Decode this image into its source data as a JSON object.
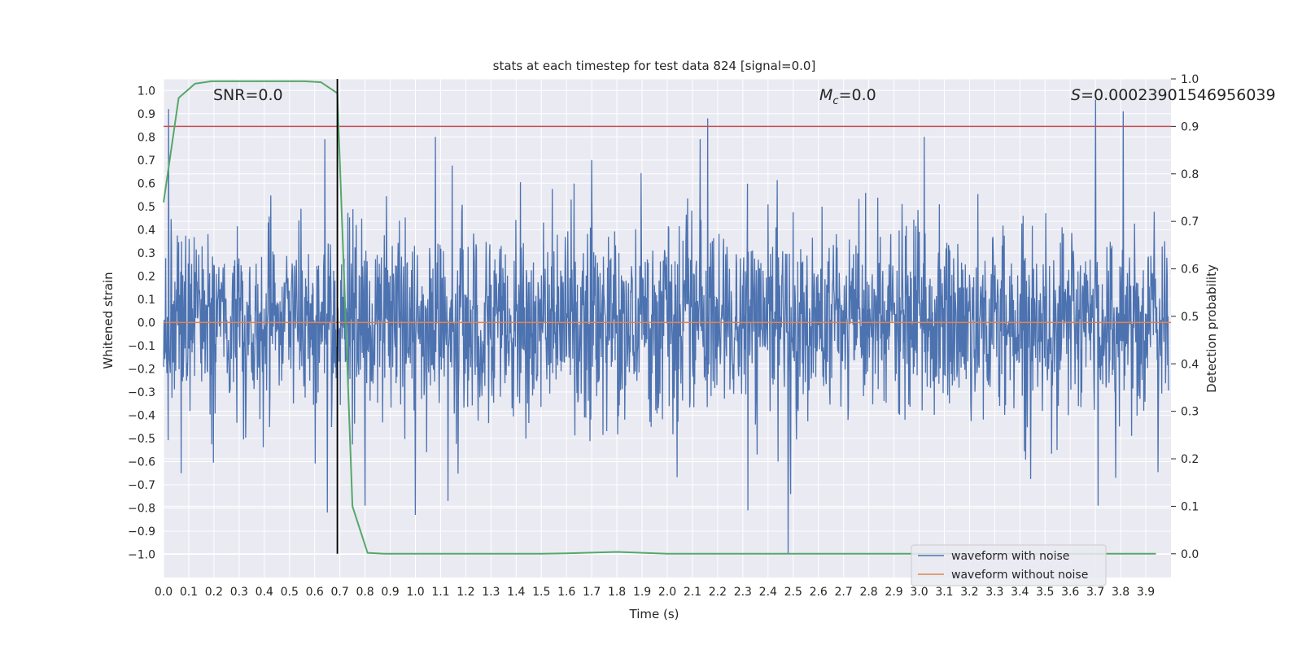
{
  "chart_data": {
    "type": "line",
    "title": "stats at each timestep for test data 824 [signal=0.0]",
    "xlabel": "Time (s)",
    "ylabel_left": "Whitened strain",
    "ylabel_right": "Detection probability",
    "xlim": [
      0.0,
      4.0
    ],
    "ylim_left": [
      -1.1,
      1.05
    ],
    "ylim_right": [
      -0.05,
      1.0
    ],
    "x_ticks": [
      "0.0",
      "0.1",
      "0.2",
      "0.3",
      "0.4",
      "0.5",
      "0.6",
      "0.7",
      "0.8",
      "0.9",
      "1.0",
      "1.1",
      "1.2",
      "1.3",
      "1.4",
      "1.5",
      "1.6",
      "1.7",
      "1.8",
      "1.9",
      "2.0",
      "2.1",
      "2.2",
      "2.3",
      "2.4",
      "2.5",
      "2.6",
      "2.7",
      "2.8",
      "2.9",
      "3.0",
      "3.1",
      "3.2",
      "3.3",
      "3.4",
      "3.5",
      "3.6",
      "3.7",
      "3.8",
      "3.9"
    ],
    "y_ticks_left": [
      "1.0",
      "0.9",
      "0.8",
      "0.7",
      "0.6",
      "0.5",
      "0.4",
      "0.3",
      "0.2",
      "0.1",
      "0.0",
      "−0.1",
      "−0.2",
      "−0.3",
      "−0.4",
      "−0.5",
      "−0.6",
      "−0.7",
      "−0.8",
      "−0.9",
      "−1.0"
    ],
    "y_ticks_right": [
      "1.0",
      "0.9",
      "0.8",
      "0.7",
      "0.6",
      "0.5",
      "0.4",
      "0.3",
      "0.2",
      "0.1",
      "0.0"
    ],
    "annotations": {
      "snr": "SNR=0.0",
      "mc_symbol": "M",
      "mc_subscript": "c",
      "mc_value": "=0.0",
      "s_symbol": "S",
      "s_value": "=0.00023901546956039"
    },
    "threshold_right": 0.9,
    "marker_time": 0.69,
    "series": [
      {
        "name": "waveform with noise",
        "color": "#4c72b0",
        "axis": "left",
        "style": "noise",
        "seed": 824,
        "t_start": 0.0,
        "t_end": 3.99,
        "peaks": [
          {
            "t": 0.02,
            "v": 0.92
          },
          {
            "t": 0.07,
            "v": -0.65
          },
          {
            "t": 0.64,
            "v": 0.79
          },
          {
            "t": 0.65,
            "v": -0.82
          },
          {
            "t": 0.8,
            "v": -0.79
          },
          {
            "t": 1.0,
            "v": -0.83
          },
          {
            "t": 1.08,
            "v": 0.8
          },
          {
            "t": 1.13,
            "v": -0.77
          },
          {
            "t": 2.13,
            "v": 0.79
          },
          {
            "t": 2.16,
            "v": 0.88
          },
          {
            "t": 2.32,
            "v": -0.81
          },
          {
            "t": 2.48,
            "v": -1.0
          },
          {
            "t": 2.49,
            "v": -0.74
          },
          {
            "t": 3.02,
            "v": 0.8
          },
          {
            "t": 3.7,
            "v": 0.96
          },
          {
            "t": 3.71,
            "v": -0.79
          },
          {
            "t": 3.81,
            "v": 0.91
          },
          {
            "t": 3.78,
            "v": -0.67
          }
        ]
      },
      {
        "name": "waveform without noise",
        "color": "#dd8452",
        "axis": "left",
        "style": "flat",
        "value": 0.0
      },
      {
        "name": "detection probability",
        "color": "#55a868",
        "axis": "right",
        "x": [
          0.0,
          0.06,
          0.125,
          0.19,
          0.25,
          0.31,
          0.375,
          0.44,
          0.5,
          0.56,
          0.625,
          0.69,
          0.75,
          0.81,
          0.875,
          0.94,
          1.0,
          1.25,
          1.5,
          1.6,
          1.8,
          2.0,
          2.5,
          3.0,
          3.5,
          3.94
        ],
        "values": [
          0.74,
          0.96,
          0.99,
          0.995,
          0.995,
          0.995,
          0.995,
          0.995,
          0.995,
          0.995,
          0.993,
          0.97,
          0.1,
          0.002,
          0.0,
          0.0,
          0.0,
          0.0,
          0.0,
          0.001,
          0.004,
          0.0,
          0.0,
          0.0,
          0.0,
          0.0
        ]
      }
    ],
    "legend": {
      "position": "lower-right",
      "entries": [
        {
          "label": "waveform with noise",
          "color": "#4c72b0"
        },
        {
          "label": "waveform without noise",
          "color": "#dd8452"
        }
      ]
    },
    "colors": {
      "plot_bg": "#eaeaf2",
      "grid": "#ffffff",
      "threshold": "#c44e52",
      "marker": "#000000",
      "text": "#262626"
    }
  }
}
